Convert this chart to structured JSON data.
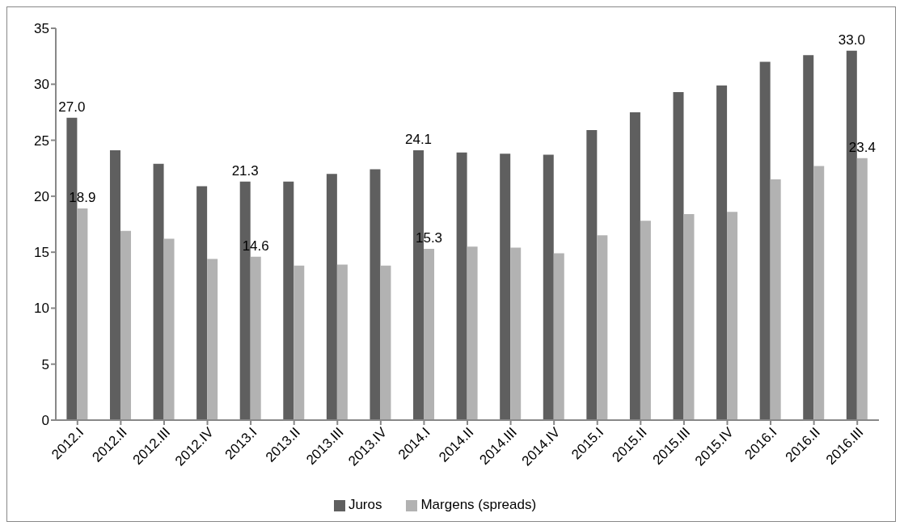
{
  "chart_data": {
    "type": "bar",
    "categories": [
      "2012.I",
      "2012.II",
      "2012.III",
      "2012.IV",
      "2013.I",
      "2013.II",
      "2013.III",
      "2013.IV",
      "2014.I",
      "2014.II",
      "2014.III",
      "2014.IV",
      "2015.I",
      "2015.II",
      "2015.III",
      "2015.IV",
      "2016.I",
      "2016.II",
      "2016.III"
    ],
    "series": [
      {
        "name": "Juros",
        "color": "#5f5f5f",
        "values": [
          27.0,
          24.1,
          22.9,
          20.9,
          21.3,
          21.3,
          22.0,
          22.4,
          24.1,
          23.9,
          23.8,
          23.7,
          25.9,
          27.5,
          29.3,
          29.9,
          32.0,
          32.6,
          33.0
        ],
        "value_labels": [
          "27.0",
          null,
          null,
          null,
          "21.3",
          null,
          null,
          null,
          "24.1",
          null,
          null,
          null,
          null,
          null,
          null,
          null,
          null,
          null,
          "33.0"
        ]
      },
      {
        "name": "Margens (spreads)",
        "color": "#b2b2b2",
        "values": [
          18.9,
          16.9,
          16.2,
          14.4,
          14.6,
          13.8,
          13.9,
          13.8,
          15.3,
          15.5,
          15.4,
          14.9,
          16.5,
          17.8,
          18.4,
          18.6,
          21.5,
          22.7,
          23.4
        ],
        "value_labels": [
          "18.9",
          null,
          null,
          null,
          "14.6",
          null,
          null,
          null,
          "15.3",
          null,
          null,
          null,
          null,
          null,
          null,
          null,
          null,
          null,
          "23.4"
        ]
      }
    ],
    "ylim": [
      0,
      35
    ],
    "yticks": [
      0,
      5,
      10,
      15,
      20,
      25,
      30,
      35
    ],
    "grid": false,
    "legend": "bottom"
  }
}
